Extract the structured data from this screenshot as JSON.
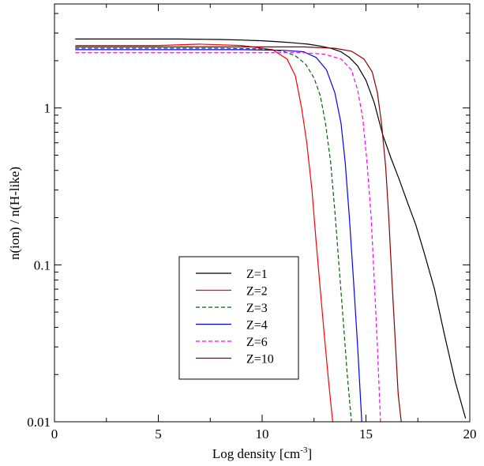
{
  "chart_data": {
    "type": "line",
    "xlabel": "Log density  [cm",
    "xlabel_sup": "-3",
    "xlabel_end": "]",
    "ylabel": "n(ion) / n(H-like)",
    "xlim": [
      0,
      20
    ],
    "ylim": [
      0.01,
      4.6
    ],
    "yscale": "log",
    "x_ticks": [
      0,
      5,
      10,
      15,
      20
    ],
    "x_tick_labels": [
      "0",
      "5",
      "10",
      "15",
      "20"
    ],
    "y_ticks": [
      0.01,
      0.1,
      1
    ],
    "y_tick_labels": [
      "0.01",
      "0.1",
      "1"
    ],
    "legend_position": "lower-left",
    "series": [
      {
        "name": "Z=1",
        "color": "#000000",
        "dash": "solid",
        "x": [
          1,
          4,
          6,
          8,
          9,
          10,
          10.8,
          11.5,
          12.2,
          12.8,
          13.3,
          13.8,
          14.2,
          14.6,
          15,
          15.4,
          15.8,
          16.2,
          16.6,
          17,
          17.4,
          17.8,
          18.3,
          18.8,
          19.3,
          19.8
        ],
        "y": [
          2.75,
          2.75,
          2.75,
          2.73,
          2.71,
          2.68,
          2.64,
          2.6,
          2.55,
          2.48,
          2.4,
          2.28,
          2.1,
          1.85,
          1.5,
          1.08,
          0.68,
          0.48,
          0.35,
          0.25,
          0.18,
          0.12,
          0.07,
          0.035,
          0.018,
          0.0105
        ]
      },
      {
        "name": "Z=2",
        "color": "#ff0000",
        "dash": "solid",
        "x": [
          1,
          5,
          7,
          9,
          10.5,
          11.2,
          11.6,
          11.9,
          12.15,
          12.4,
          12.6,
          12.8,
          13.0,
          13.2,
          13.4
        ],
        "y": [
          2.5,
          2.5,
          2.55,
          2.5,
          2.35,
          2.05,
          1.6,
          1.0,
          0.6,
          0.3,
          0.14,
          0.07,
          0.035,
          0.018,
          0.01
        ]
      },
      {
        "name": "Z=3",
        "color": "#006400",
        "dash": "dashed",
        "x": [
          1,
          5,
          8,
          10,
          11,
          11.6,
          12.1,
          12.5,
          12.8,
          13.05,
          13.3,
          13.5,
          13.7,
          13.9,
          14.1,
          14.3
        ],
        "y": [
          2.4,
          2.4,
          2.4,
          2.38,
          2.3,
          2.15,
          1.9,
          1.55,
          1.2,
          0.8,
          0.45,
          0.22,
          0.1,
          0.045,
          0.02,
          0.01
        ]
      },
      {
        "name": "Z=4",
        "color": "#0000ff",
        "dash": "solid",
        "x": [
          1,
          5,
          9,
          11,
          12,
          12.6,
          13.1,
          13.5,
          13.8,
          14.0,
          14.2,
          14.4,
          14.6,
          14.8
        ],
        "y": [
          2.35,
          2.35,
          2.35,
          2.33,
          2.28,
          2.1,
          1.75,
          1.25,
          0.8,
          0.45,
          0.2,
          0.08,
          0.03,
          0.01
        ]
      },
      {
        "name": "Z=6",
        "color": "#ff00ff",
        "dash": "dashed",
        "x": [
          1,
          5,
          10,
          12,
          13,
          13.8,
          14.3,
          14.6,
          14.85,
          15.05,
          15.25,
          15.4,
          15.55,
          15.7
        ],
        "y": [
          2.25,
          2.25,
          2.25,
          2.25,
          2.2,
          2.05,
          1.75,
          1.3,
          0.85,
          0.45,
          0.2,
          0.08,
          0.03,
          0.01
        ]
      },
      {
        "name": "Z=10",
        "color": "#8b0000",
        "dash": "solid",
        "x": [
          1,
          5,
          10,
          12,
          13.5,
          14.3,
          14.9,
          15.3,
          15.55,
          15.75,
          15.95,
          16.1,
          16.25,
          16.4,
          16.55,
          16.7
        ],
        "y": [
          2.45,
          2.45,
          2.45,
          2.45,
          2.4,
          2.3,
          2.05,
          1.7,
          1.25,
          0.8,
          0.42,
          0.2,
          0.08,
          0.035,
          0.015,
          0.01
        ]
      }
    ]
  }
}
